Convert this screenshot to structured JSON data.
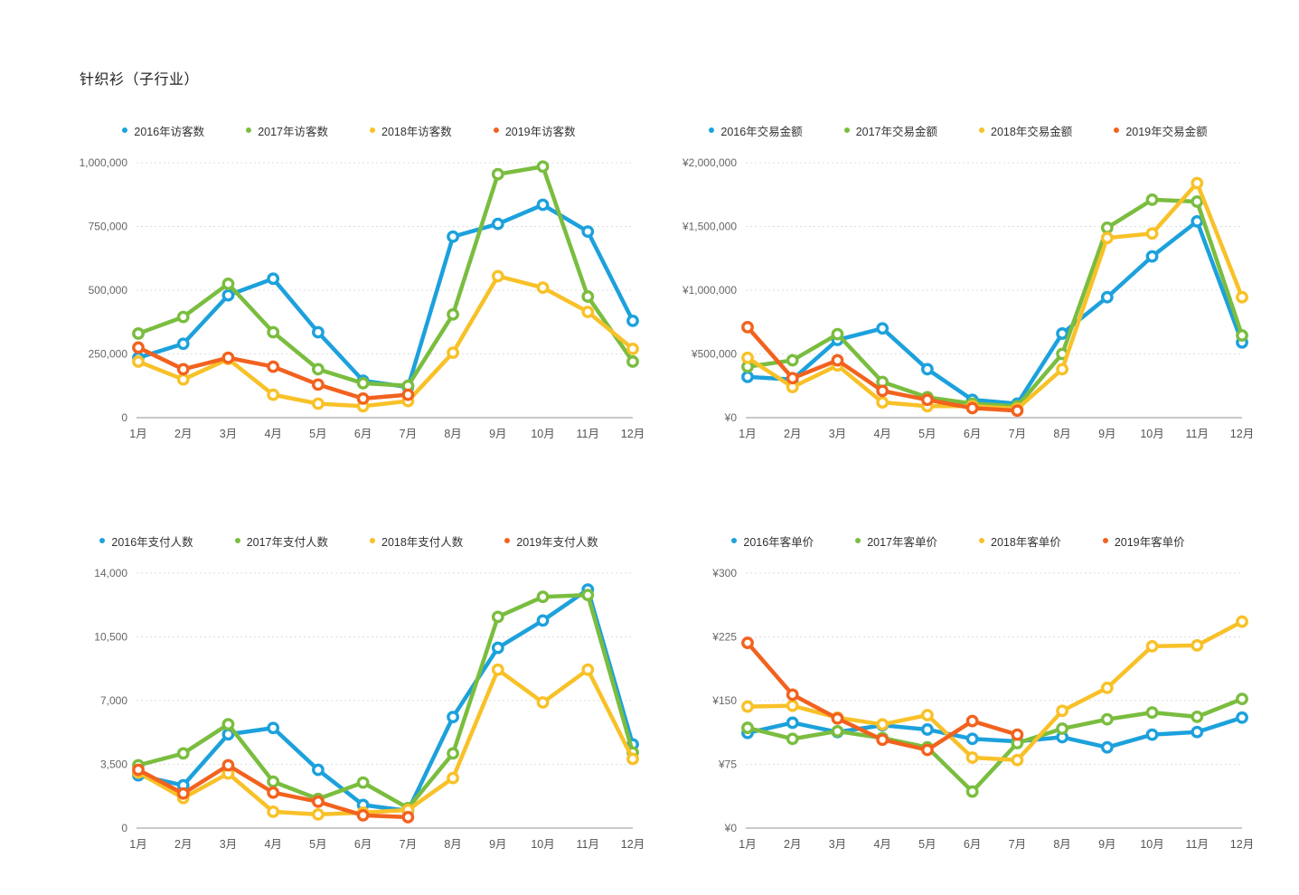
{
  "page_title": "针织衫（子行业）",
  "palette": {
    "blue": "#1CA1DC",
    "green": "#7ABD3F",
    "yellow": "#F8C128",
    "orange": "#F2621E"
  },
  "axis_colors": {
    "grid_line": "#dddddd",
    "zero_line": "#c9c9c9",
    "tick_text": "#666666"
  },
  "chart_data": [
    {
      "id": "visitors",
      "type": "line",
      "metric": "访客数",
      "categories": [
        "1月",
        "2月",
        "3月",
        "4月",
        "5月",
        "6月",
        "7月",
        "8月",
        "9月",
        "10月",
        "11月",
        "12月"
      ],
      "y_axis": {
        "max": 1000000,
        "tick_values": [
          1000000,
          750000,
          500000,
          250000,
          0
        ],
        "tick_labels": [
          "1,000,000",
          "750,000",
          "500,000",
          "250,000",
          "0"
        ]
      },
      "series": [
        {
          "name": "2016年访客数",
          "color": "blue",
          "values": [
            235000,
            290000,
            480000,
            545000,
            335000,
            145000,
            120000,
            710000,
            760000,
            835000,
            730000,
            380000
          ]
        },
        {
          "name": "2017年访客数",
          "color": "green",
          "values": [
            330000,
            395000,
            525000,
            335000,
            190000,
            135000,
            125000,
            405000,
            955000,
            985000,
            475000,
            220000
          ]
        },
        {
          "name": "2018年访客数",
          "color": "yellow",
          "values": [
            220000,
            150000,
            230000,
            90000,
            55000,
            45000,
            65000,
            255000,
            555000,
            510000,
            415000,
            270000
          ]
        },
        {
          "name": "2019年访客数",
          "color": "orange",
          "values": [
            275000,
            190000,
            235000,
            200000,
            130000,
            75000,
            90000
          ]
        }
      ]
    },
    {
      "id": "transaction-amount",
      "type": "line",
      "metric": "交易金额",
      "categories": [
        "1月",
        "2月",
        "3月",
        "4月",
        "5月",
        "6月",
        "7月",
        "8月",
        "9月",
        "10月",
        "11月",
        "12月"
      ],
      "y_axis": {
        "max": 2000000,
        "tick_values": [
          2000000,
          1500000,
          1000000,
          500000,
          0
        ],
        "tick_labels": [
          "¥2,000,000",
          "¥1,500,000",
          "¥1,000,000",
          "¥500,000",
          "¥0"
        ]
      },
      "series": [
        {
          "name": "2016年交易金额",
          "color": "blue",
          "values": [
            320000,
            300000,
            610000,
            700000,
            380000,
            140000,
            110000,
            660000,
            945000,
            1265000,
            1540000,
            590000
          ]
        },
        {
          "name": "2017年交易金额",
          "color": "green",
          "values": [
            400000,
            450000,
            655000,
            280000,
            160000,
            110000,
            90000,
            500000,
            1490000,
            1710000,
            1695000,
            645000
          ]
        },
        {
          "name": "2018年交易金额",
          "color": "yellow",
          "values": [
            470000,
            240000,
            410000,
            120000,
            90000,
            90000,
            70000,
            380000,
            1410000,
            1445000,
            1840000,
            945000
          ]
        },
        {
          "name": "2019年交易金额",
          "color": "orange",
          "values": [
            710000,
            310000,
            450000,
            210000,
            140000,
            75000,
            55000
          ]
        }
      ]
    },
    {
      "id": "payers",
      "type": "line",
      "metric": "支付人数",
      "categories": [
        "1月",
        "2月",
        "3月",
        "4月",
        "5月",
        "6月",
        "7月",
        "8月",
        "9月",
        "10月",
        "11月",
        "12月"
      ],
      "y_axis": {
        "max": 14000,
        "tick_values": [
          14000,
          10500,
          7000,
          3500,
          0
        ],
        "tick_labels": [
          "14,000",
          "10,500",
          "7,000",
          "3,500",
          "0"
        ]
      },
      "series": [
        {
          "name": "2016年支付人数",
          "color": "blue",
          "values": [
            2900,
            2350,
            5150,
            5500,
            3200,
            1270,
            950,
            6100,
            9900,
            11400,
            13100,
            4600
          ]
        },
        {
          "name": "2017年支付人数",
          "color": "green",
          "values": [
            3450,
            4100,
            5700,
            2550,
            1600,
            2500,
            1100,
            4100,
            11600,
            12700,
            12800,
            4150
          ]
        },
        {
          "name": "2018年支付人数",
          "color": "yellow",
          "values": [
            3050,
            1650,
            3000,
            900,
            750,
            850,
            1000,
            2750,
            8700,
            6900,
            8700,
            3800
          ]
        },
        {
          "name": "2019年支付人数",
          "color": "orange",
          "values": [
            3200,
            1900,
            3450,
            1950,
            1450,
            700,
            600
          ]
        }
      ]
    },
    {
      "id": "unit-price",
      "type": "line",
      "metric": "客单价",
      "categories": [
        "1月",
        "2月",
        "3月",
        "4月",
        "5月",
        "6月",
        "7月",
        "8月",
        "9月",
        "10月",
        "11月",
        "12月"
      ],
      "y_axis": {
        "max": 300,
        "tick_values": [
          300,
          225,
          150,
          75,
          0
        ],
        "tick_labels": [
          "¥300",
          "¥225",
          "¥150",
          "¥75",
          "¥0"
        ]
      },
      "series": [
        {
          "name": "2016年客单价",
          "color": "blue",
          "values": [
            112,
            124,
            113,
            121,
            116,
            105,
            102,
            107,
            95,
            110,
            113,
            130
          ]
        },
        {
          "name": "2017年客单价",
          "color": "green",
          "values": [
            118,
            105,
            114,
            106,
            95,
            43,
            100,
            117,
            128,
            136,
            131,
            152
          ]
        },
        {
          "name": "2018年客单价",
          "color": "yellow",
          "values": [
            143,
            144,
            130,
            122,
            133,
            83,
            80,
            138,
            165,
            214,
            215,
            243
          ]
        },
        {
          "name": "2019年客单价",
          "color": "orange",
          "values": [
            218,
            157,
            129,
            104,
            92,
            126,
            110
          ]
        }
      ]
    }
  ]
}
